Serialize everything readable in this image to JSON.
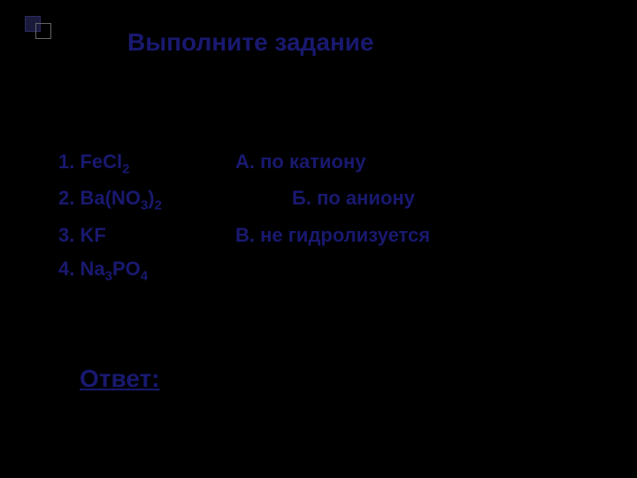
{
  "title": "Выполните задание",
  "formulas": [
    {
      "number": "1.",
      "formula": "FeCl",
      "subscript": "2"
    },
    {
      "number": "2.",
      "formula": "Ba(NO",
      "subscript_inner": "3",
      "paren_close": ")",
      "subscript": "2"
    },
    {
      "number": "3.",
      "formula": "KF"
    },
    {
      "number": "4.",
      "formula": "Na",
      "subscript_a": "3",
      "formula_b": "PO",
      "subscript_b": "4"
    }
  ],
  "hydrolysis_types": [
    {
      "letter": "А.",
      "text": "по катиону",
      "indented": false
    },
    {
      "letter": "Б.",
      "text": "по аниону",
      "indented": true
    },
    {
      "letter": "В.",
      "text": "не гидролизуется",
      "indented": false
    }
  ],
  "answer_label": "Ответ:",
  "colors": {
    "background": "#000000",
    "text": "#191970",
    "square_fill": "#1a1a3d"
  }
}
